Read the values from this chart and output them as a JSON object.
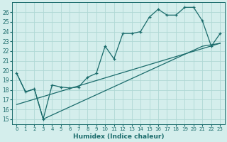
{
  "xlabel": "Humidex (Indice chaleur)",
  "background_color": "#d4eeec",
  "grid_color": "#b0d8d5",
  "line_color": "#1a6b6b",
  "xlim": [
    -0.5,
    23.5
  ],
  "ylim": [
    14.5,
    27.0
  ],
  "xticks": [
    0,
    1,
    2,
    3,
    4,
    5,
    6,
    7,
    8,
    9,
    10,
    11,
    12,
    13,
    14,
    15,
    16,
    17,
    18,
    19,
    20,
    21,
    22,
    23
  ],
  "yticks": [
    15,
    16,
    17,
    18,
    19,
    20,
    21,
    22,
    23,
    24,
    25,
    26
  ],
  "line1_x": [
    0,
    1,
    2,
    3,
    4,
    5,
    6,
    7,
    8,
    9,
    10,
    11,
    12,
    13,
    14,
    15,
    16,
    17,
    18,
    19,
    20,
    21,
    22,
    23
  ],
  "line1_y": [
    19.7,
    17.8,
    18.1,
    15.0,
    18.5,
    18.3,
    18.2,
    18.3,
    19.3,
    19.7,
    22.5,
    21.2,
    23.8,
    23.8,
    24.0,
    25.5,
    26.3,
    25.7,
    25.7,
    26.5,
    26.5,
    25.1,
    22.5,
    23.8
  ],
  "line2_x": [
    0,
    1,
    2,
    3,
    21,
    23
  ],
  "line2_y": [
    19.7,
    17.8,
    18.1,
    15.0,
    22.5,
    22.8
  ],
  "line3_x": [
    0,
    23
  ],
  "line3_y": [
    16.5,
    22.8
  ]
}
